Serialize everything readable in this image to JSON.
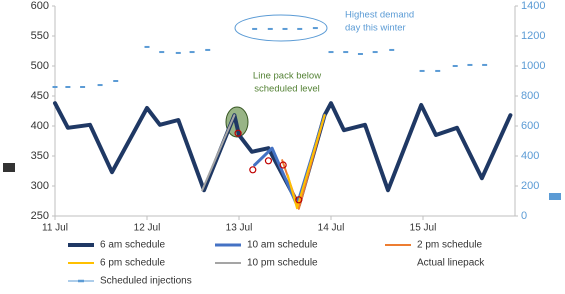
{
  "chart_data": {
    "type": "line",
    "xlim": [
      0,
      5
    ],
    "xticks": [
      {
        "value": 0,
        "label": "11 Jul"
      },
      {
        "value": 1,
        "label": "12 Jul"
      },
      {
        "value": 2,
        "label": "13 Jul"
      },
      {
        "value": 3,
        "label": "14 Jul"
      },
      {
        "value": 4,
        "label": "15 Jul"
      }
    ],
    "ylim": [
      250,
      600
    ],
    "yticks": [
      250,
      300,
      350,
      400,
      450,
      500,
      550,
      600
    ],
    "y2lim": [
      0,
      1400
    ],
    "y2ticks": [
      0,
      200,
      400,
      600,
      800,
      1000,
      1200,
      1400
    ],
    "series": [
      {
        "name": "6 am schedule",
        "color": "#1f3864",
        "style": "line",
        "width": 4,
        "x": [
          0,
          0.14,
          0.38,
          0.62,
          1.0,
          1.14,
          1.34,
          1.62,
          1.95,
          2.0,
          2.14,
          2.32,
          2.65,
          2.93,
          3.0,
          3.14,
          3.37,
          3.62,
          3.98,
          4.14,
          4.37,
          4.64,
          4.95
        ],
        "values": [
          438,
          397,
          402,
          323,
          430,
          402,
          410,
          293,
          418,
          385,
          357,
          363,
          268,
          418,
          438,
          393,
          402,
          293,
          435,
          385,
          397,
          313,
          418
        ]
      },
      {
        "name": "10 am schedule",
        "color": "#4472c4",
        "style": "line",
        "width": 3,
        "x": [
          2.17,
          2.36,
          2.63,
          2.93
        ],
        "values": [
          335,
          363,
          268,
          418
        ]
      },
      {
        "name": "2 pm schedule",
        "color": "#ed7d31",
        "style": "line",
        "width": 2,
        "x": [
          2.47,
          2.65,
          2.93
        ],
        "values": [
          343,
          262,
          418
        ]
      },
      {
        "name": "6 pm schedule",
        "color": "#ffc000",
        "style": "line",
        "width": 2,
        "x": [
          2.53,
          2.63,
          2.93
        ],
        "values": [
          318,
          263,
          418
        ]
      },
      {
        "name": "10 pm schedule",
        "color": "#a5a5a5",
        "style": "line",
        "width": 2,
        "x": [
          1.6,
          1.95,
          2.6,
          2.95
        ],
        "values": [
          293,
          418,
          null,
          418
        ]
      },
      {
        "name": "Actual linepack",
        "color": "#c00000",
        "style": "marker",
        "x": [
          1.99,
          2.15,
          2.32,
          2.48,
          2.65
        ],
        "values": [
          388,
          327,
          342,
          335,
          277
        ]
      },
      {
        "name": "Scheduled injections",
        "color": "#5b9bd5",
        "style": "dash",
        "axis": "y2",
        "x": [
          0,
          0.14,
          0.3,
          0.49,
          0.66,
          1.0,
          1.16,
          1.34,
          1.49,
          1.66,
          2.17,
          2.34,
          2.5,
          2.66,
          2.83,
          3.0,
          3.16,
          3.32,
          3.48,
          3.66,
          3.99,
          4.16,
          4.35,
          4.51,
          4.67
        ],
        "values": [
          860,
          860,
          860,
          873,
          900,
          1127,
          1093,
          1087,
          1093,
          1107,
          1247,
          1247,
          1247,
          1247,
          1253,
          1093,
          1093,
          1080,
          1093,
          1107,
          967,
          967,
          1000,
          1007,
          1007
        ]
      }
    ],
    "annotations": [
      {
        "lines": [
          "Highest demand",
          "day this winter"
        ],
        "color": "#5b9bd5"
      },
      {
        "lines": [
          "Line pack below",
          "scheduled level"
        ],
        "color": "#548235"
      }
    ]
  }
}
